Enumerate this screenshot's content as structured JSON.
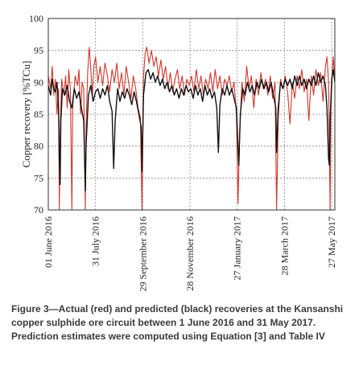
{
  "figure": {
    "caption": "Figure 3—Actual (red) and predicted (black) recoveries at the Kansanshi copper sulphide ore circuit between 1 June 2016 and 31 May 2017. Prediction estimates were computed using Equation [3] and Table IV"
  },
  "chart_data": {
    "type": "line",
    "title": "",
    "xlabel": "",
    "ylabel": "Copper recovery [%TCu]",
    "ylim": [
      70,
      100
    ],
    "yticks": [
      70,
      75,
      80,
      85,
      90,
      95,
      100
    ],
    "xlim": [
      "2016-06-01",
      "2017-05-31"
    ],
    "xticks": [
      "01 June 2016",
      "31 July 2016",
      "29 September 2016",
      "28 November 2016",
      "27 January 2017",
      "28 March 2017",
      "27 May 2017"
    ],
    "xtick_dates": [
      "2016-06-01",
      "2016-07-31",
      "2016-09-29",
      "2016-11-28",
      "2017-01-27",
      "2017-03-28",
      "2017-05-27"
    ],
    "grid": true,
    "series": [
      {
        "color": "#d0362c",
        "points": [
          [
            "2016-06-01",
            91.0
          ],
          [
            "2016-06-04",
            89.0
          ],
          [
            "2016-06-06",
            92.5
          ],
          [
            "2016-06-08",
            88.0
          ],
          [
            "2016-06-10",
            90.5
          ],
          [
            "2016-06-12",
            85.0
          ],
          [
            "2016-06-14",
            89.0
          ],
          [
            "2016-06-15",
            70.0
          ],
          [
            "2016-06-16",
            82.0
          ],
          [
            "2016-06-18",
            90.5
          ],
          [
            "2016-06-21",
            88.0
          ],
          [
            "2016-06-23",
            91.0
          ],
          [
            "2016-06-25",
            86.0
          ],
          [
            "2016-06-27",
            92.0
          ],
          [
            "2016-06-29",
            89.0
          ],
          [
            "2016-07-01",
            70.0
          ],
          [
            "2016-07-02",
            86.0
          ],
          [
            "2016-07-05",
            91.0
          ],
          [
            "2016-07-08",
            89.5
          ],
          [
            "2016-07-10",
            92.0
          ],
          [
            "2016-07-12",
            85.0
          ],
          [
            "2016-07-14",
            90.0
          ],
          [
            "2016-07-16",
            89.0
          ],
          [
            "2016-07-18",
            70.0
          ],
          [
            "2016-07-19",
            83.0
          ],
          [
            "2016-07-21",
            91.5
          ],
          [
            "2016-07-23",
            95.5
          ],
          [
            "2016-07-25",
            92.0
          ],
          [
            "2016-07-27",
            88.0
          ],
          [
            "2016-07-29",
            92.5
          ],
          [
            "2016-07-31",
            94.0
          ],
          [
            "2016-08-03",
            90.0
          ],
          [
            "2016-08-06",
            92.5
          ],
          [
            "2016-08-09",
            89.5
          ],
          [
            "2016-08-12",
            93.0
          ],
          [
            "2016-08-15",
            91.0
          ],
          [
            "2016-08-18",
            88.5
          ],
          [
            "2016-08-21",
            92.0
          ],
          [
            "2016-08-24",
            90.0
          ],
          [
            "2016-08-27",
            93.0
          ],
          [
            "2016-08-30",
            89.0
          ],
          [
            "2016-09-02",
            91.5
          ],
          [
            "2016-09-05",
            88.0
          ],
          [
            "2016-09-08",
            92.5
          ],
          [
            "2016-09-11",
            90.0
          ],
          [
            "2016-09-14",
            87.5
          ],
          [
            "2016-09-17",
            91.0
          ],
          [
            "2016-09-20",
            89.0
          ],
          [
            "2016-09-23",
            86.0
          ],
          [
            "2016-09-26",
            84.5
          ],
          [
            "2016-09-28",
            70.0
          ],
          [
            "2016-09-30",
            91.0
          ],
          [
            "2016-10-02",
            94.5
          ],
          [
            "2016-10-04",
            95.5
          ],
          [
            "2016-10-07",
            93.0
          ],
          [
            "2016-10-10",
            95.0
          ],
          [
            "2016-10-13",
            92.5
          ],
          [
            "2016-10-16",
            94.0
          ],
          [
            "2016-10-19",
            91.0
          ],
          [
            "2016-10-22",
            93.5
          ],
          [
            "2016-10-25",
            90.5
          ],
          [
            "2016-10-28",
            92.5
          ],
          [
            "2016-10-31",
            89.0
          ],
          [
            "2016-11-03",
            91.5
          ],
          [
            "2016-11-06",
            88.5
          ],
          [
            "2016-11-09",
            90.5
          ],
          [
            "2016-11-12",
            92.0
          ],
          [
            "2016-11-15",
            89.0
          ],
          [
            "2016-11-18",
            91.0
          ],
          [
            "2016-11-21",
            88.0
          ],
          [
            "2016-11-24",
            90.5
          ],
          [
            "2016-11-27",
            89.5
          ],
          [
            "2016-11-30",
            91.0
          ],
          [
            "2016-12-03",
            88.5
          ],
          [
            "2016-12-06",
            92.0
          ],
          [
            "2016-12-09",
            89.0
          ],
          [
            "2016-12-12",
            91.0
          ],
          [
            "2016-12-15",
            88.0
          ],
          [
            "2016-12-18",
            90.5
          ],
          [
            "2016-12-21",
            89.0
          ],
          [
            "2016-12-24",
            91.5
          ],
          [
            "2016-12-27",
            88.5
          ],
          [
            "2016-12-30",
            92.0
          ],
          [
            "2017-01-02",
            89.0
          ],
          [
            "2017-01-05",
            91.0
          ],
          [
            "2017-01-08",
            88.0
          ],
          [
            "2017-01-11",
            90.5
          ],
          [
            "2017-01-14",
            89.5
          ],
          [
            "2017-01-17",
            91.0
          ],
          [
            "2017-01-20",
            88.5
          ],
          [
            "2017-01-23",
            90.0
          ],
          [
            "2017-01-26",
            85.0
          ],
          [
            "2017-01-28",
            71.0
          ],
          [
            "2017-01-30",
            82.0
          ],
          [
            "2017-02-02",
            90.0
          ],
          [
            "2017-02-05",
            87.0
          ],
          [
            "2017-02-08",
            92.5
          ],
          [
            "2017-02-11",
            89.0
          ],
          [
            "2017-02-14",
            91.0
          ],
          [
            "2017-02-17",
            86.0
          ],
          [
            "2017-02-20",
            90.5
          ],
          [
            "2017-02-23",
            88.0
          ],
          [
            "2017-02-26",
            91.5
          ],
          [
            "2017-03-01",
            89.0
          ],
          [
            "2017-03-04",
            90.5
          ],
          [
            "2017-03-07",
            88.0
          ],
          [
            "2017-03-10",
            91.0
          ],
          [
            "2017-03-13",
            87.5
          ],
          [
            "2017-03-16",
            90.0
          ],
          [
            "2017-03-18",
            70.0
          ],
          [
            "2017-03-20",
            84.0
          ],
          [
            "2017-03-23",
            90.5
          ],
          [
            "2017-03-26",
            89.0
          ],
          [
            "2017-03-29",
            91.0
          ],
          [
            "2017-04-01",
            88.5
          ],
          [
            "2017-04-04",
            83.5
          ],
          [
            "2017-04-07",
            90.0
          ],
          [
            "2017-04-10",
            87.5
          ],
          [
            "2017-04-13",
            91.0
          ],
          [
            "2017-04-16",
            89.0
          ],
          [
            "2017-04-19",
            92.0
          ],
          [
            "2017-04-22",
            88.5
          ],
          [
            "2017-04-25",
            90.5
          ],
          [
            "2017-04-28",
            84.0
          ],
          [
            "2017-05-01",
            91.0
          ],
          [
            "2017-05-04",
            88.0
          ],
          [
            "2017-05-07",
            92.0
          ],
          [
            "2017-05-10",
            89.5
          ],
          [
            "2017-05-13",
            91.5
          ],
          [
            "2017-05-16",
            87.0
          ],
          [
            "2017-05-19",
            92.5
          ],
          [
            "2017-05-21",
            94.0
          ],
          [
            "2017-05-23",
            90.0
          ],
          [
            "2017-05-25",
            70.0
          ],
          [
            "2017-05-26",
            86.0
          ],
          [
            "2017-05-28",
            92.5
          ],
          [
            "2017-05-29",
            94.0
          ],
          [
            "2017-05-31",
            90.0
          ]
        ]
      },
      {
        "color": "#111111",
        "points": [
          [
            "2016-06-01",
            89.5
          ],
          [
            "2016-06-04",
            88.0
          ],
          [
            "2016-06-06",
            90.5
          ],
          [
            "2016-06-08",
            89.0
          ],
          [
            "2016-06-10",
            88.5
          ],
          [
            "2016-06-12",
            90.0
          ],
          [
            "2016-06-14",
            86.0
          ],
          [
            "2016-06-15",
            78.0
          ],
          [
            "2016-06-16",
            74.0
          ],
          [
            "2016-06-17",
            84.0
          ],
          [
            "2016-06-19",
            89.0
          ],
          [
            "2016-06-22",
            88.0
          ],
          [
            "2016-06-25",
            89.5
          ],
          [
            "2016-06-28",
            87.0
          ],
          [
            "2016-07-01",
            86.0
          ],
          [
            "2016-07-04",
            89.0
          ],
          [
            "2016-07-07",
            87.5
          ],
          [
            "2016-07-10",
            88.5
          ],
          [
            "2016-07-13",
            86.0
          ],
          [
            "2016-07-16",
            84.0
          ],
          [
            "2016-07-18",
            73.0
          ],
          [
            "2016-07-19",
            80.0
          ],
          [
            "2016-07-22",
            88.0
          ],
          [
            "2016-07-25",
            89.5
          ],
          [
            "2016-07-28",
            87.0
          ],
          [
            "2016-07-31",
            88.5
          ],
          [
            "2016-08-03",
            89.0
          ],
          [
            "2016-08-06",
            87.5
          ],
          [
            "2016-08-09",
            89.0
          ],
          [
            "2016-08-12",
            88.0
          ],
          [
            "2016-08-15",
            89.5
          ],
          [
            "2016-08-18",
            87.0
          ],
          [
            "2016-08-21",
            85.5
          ],
          [
            "2016-08-23",
            76.5
          ],
          [
            "2016-08-25",
            84.0
          ],
          [
            "2016-08-28",
            89.0
          ],
          [
            "2016-08-31",
            87.0
          ],
          [
            "2016-09-03",
            88.5
          ],
          [
            "2016-09-06",
            87.5
          ],
          [
            "2016-09-09",
            89.0
          ],
          [
            "2016-09-12",
            88.0
          ],
          [
            "2016-09-15",
            86.5
          ],
          [
            "2016-09-18",
            88.5
          ],
          [
            "2016-09-21",
            87.0
          ],
          [
            "2016-09-24",
            85.0
          ],
          [
            "2016-09-27",
            83.0
          ],
          [
            "2016-09-28",
            76.0
          ],
          [
            "2016-09-30",
            88.0
          ],
          [
            "2016-10-03",
            91.5
          ],
          [
            "2016-10-06",
            92.0
          ],
          [
            "2016-10-09",
            90.5
          ],
          [
            "2016-10-12",
            91.5
          ],
          [
            "2016-10-15",
            90.0
          ],
          [
            "2016-10-18",
            91.0
          ],
          [
            "2016-10-21",
            89.5
          ],
          [
            "2016-10-24",
            90.5
          ],
          [
            "2016-10-27",
            89.0
          ],
          [
            "2016-10-30",
            90.0
          ],
          [
            "2016-11-02",
            88.5
          ],
          [
            "2016-11-05",
            89.5
          ],
          [
            "2016-11-08",
            88.0
          ],
          [
            "2016-11-11",
            89.0
          ],
          [
            "2016-11-14",
            87.5
          ],
          [
            "2016-11-17",
            89.0
          ],
          [
            "2016-11-20",
            88.0
          ],
          [
            "2016-11-23",
            89.5
          ],
          [
            "2016-11-26",
            88.5
          ],
          [
            "2016-11-29",
            89.0
          ],
          [
            "2016-12-02",
            87.5
          ],
          [
            "2016-12-05",
            89.5
          ],
          [
            "2016-12-08",
            88.0
          ],
          [
            "2016-12-11",
            89.0
          ],
          [
            "2016-12-14",
            87.0
          ],
          [
            "2016-12-17",
            89.5
          ],
          [
            "2016-12-20",
            88.0
          ],
          [
            "2016-12-23",
            89.0
          ],
          [
            "2016-12-26",
            87.5
          ],
          [
            "2016-12-29",
            88.5
          ],
          [
            "2017-01-01",
            86.0
          ],
          [
            "2017-01-03",
            79.0
          ],
          [
            "2017-01-05",
            86.5
          ],
          [
            "2017-01-08",
            89.0
          ],
          [
            "2017-01-11",
            88.0
          ],
          [
            "2017-01-14",
            89.5
          ],
          [
            "2017-01-17",
            88.0
          ],
          [
            "2017-01-20",
            89.0
          ],
          [
            "2017-01-23",
            87.5
          ],
          [
            "2017-01-26",
            86.0
          ],
          [
            "2017-01-29",
            77.0
          ],
          [
            "2017-01-31",
            85.0
          ],
          [
            "2017-02-03",
            89.0
          ],
          [
            "2017-02-06",
            88.0
          ],
          [
            "2017-02-09",
            90.0
          ],
          [
            "2017-02-12",
            88.5
          ],
          [
            "2017-02-15",
            89.5
          ],
          [
            "2017-02-18",
            88.0
          ],
          [
            "2017-02-21",
            90.0
          ],
          [
            "2017-02-24",
            89.0
          ],
          [
            "2017-02-27",
            90.5
          ],
          [
            "2017-03-02",
            89.0
          ],
          [
            "2017-03-05",
            90.0
          ],
          [
            "2017-03-08",
            88.5
          ],
          [
            "2017-03-11",
            90.0
          ],
          [
            "2017-03-14",
            88.0
          ],
          [
            "2017-03-17",
            86.0
          ],
          [
            "2017-03-18",
            79.0
          ],
          [
            "2017-03-20",
            86.0
          ],
          [
            "2017-03-23",
            90.0
          ],
          [
            "2017-03-26",
            89.0
          ],
          [
            "2017-03-29",
            90.5
          ],
          [
            "2017-04-01",
            89.5
          ],
          [
            "2017-04-04",
            90.5
          ],
          [
            "2017-04-07",
            89.0
          ],
          [
            "2017-04-10",
            91.0
          ],
          [
            "2017-04-13",
            89.5
          ],
          [
            "2017-04-16",
            91.0
          ],
          [
            "2017-04-19",
            89.5
          ],
          [
            "2017-04-22",
            90.5
          ],
          [
            "2017-04-25",
            89.0
          ],
          [
            "2017-04-28",
            90.5
          ],
          [
            "2017-05-01",
            89.5
          ],
          [
            "2017-05-04",
            91.0
          ],
          [
            "2017-05-07",
            89.5
          ],
          [
            "2017-05-10",
            91.5
          ],
          [
            "2017-05-13",
            90.0
          ],
          [
            "2017-05-16",
            91.0
          ],
          [
            "2017-05-19",
            89.5
          ],
          [
            "2017-05-21",
            86.0
          ],
          [
            "2017-05-23",
            78.0
          ],
          [
            "2017-05-24",
            77.0
          ],
          [
            "2017-05-25",
            84.0
          ],
          [
            "2017-05-27",
            90.5
          ],
          [
            "2017-05-29",
            92.0
          ],
          [
            "2017-05-31",
            90.0
          ]
        ]
      }
    ]
  }
}
